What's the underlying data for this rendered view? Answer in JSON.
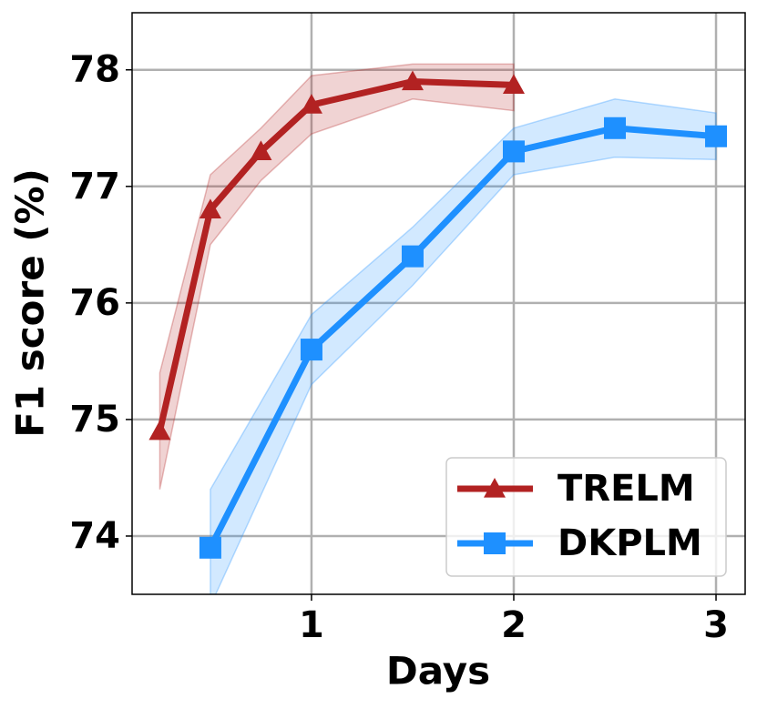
{
  "chart_data": {
    "type": "line",
    "xlabel": "Days",
    "ylabel": "F1 score (%)",
    "xlim": [
      0.113,
      3.144
    ],
    "ylim": [
      73.5,
      78.49
    ],
    "xticks": [
      1,
      2,
      3
    ],
    "yticks": [
      74,
      75,
      76,
      77,
      78
    ],
    "grid": true,
    "legend": "lower right",
    "series": [
      {
        "name": "TRELM",
        "color": "#b22222",
        "marker": "triangle",
        "x": [
          0.25,
          0.5,
          0.75,
          1,
          1.5,
          2
        ],
        "values": [
          74.9,
          76.8,
          77.3,
          77.7,
          77.9,
          77.87
        ],
        "upper": [
          75.4,
          77.1,
          77.5,
          77.95,
          78.05,
          78.05
        ],
        "lower": [
          74.4,
          76.5,
          77.05,
          77.45,
          77.75,
          77.65
        ]
      },
      {
        "name": "DKPLM",
        "color": "#1e90ff",
        "marker": "square",
        "x": [
          0.5,
          1,
          1.5,
          2,
          2.5,
          3
        ],
        "values": [
          73.9,
          75.6,
          76.4,
          77.3,
          77.5,
          77.43
        ],
        "upper": [
          74.4,
          75.9,
          76.65,
          77.5,
          77.75,
          77.63
        ],
        "lower": [
          73.4,
          75.3,
          76.15,
          77.1,
          77.25,
          77.23
        ]
      }
    ]
  }
}
